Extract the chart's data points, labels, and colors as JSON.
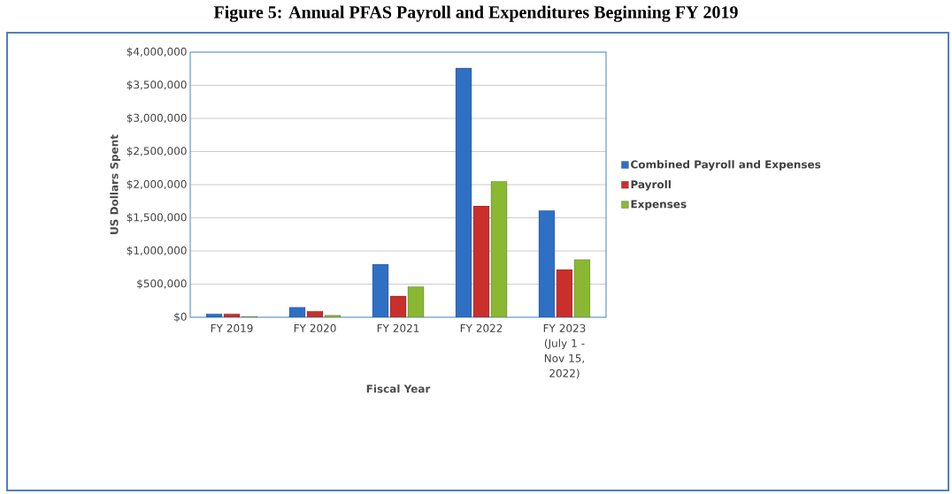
{
  "chart_data": {
    "type": "bar",
    "title": "Figure 5: Annual PFAS Payroll and Expenditures Beginning FY 2019",
    "categories": [
      "FY 2019",
      "FY 2020",
      "FY 2021",
      "FY 2022",
      "FY 2023 (July 1 - Nov 15, 2022)"
    ],
    "series": [
      {
        "name": "Combined Payroll and Expenses",
        "color": "#2f6fc4",
        "values": [
          50000,
          150000,
          800000,
          3760000,
          1610000
        ]
      },
      {
        "name": "Payroll",
        "color": "#c9302c",
        "values": [
          50000,
          90000,
          320000,
          1680000,
          720000
        ]
      },
      {
        "name": "Expenses",
        "color": "#8ab833",
        "values": [
          10000,
          30000,
          460000,
          2050000,
          870000
        ]
      }
    ],
    "xlabel": "Fiscal Year",
    "ylabel": "US Dollars Spent",
    "ylim": [
      0,
      4000000
    ],
    "yticks": [
      {
        "value": 0,
        "label": "$0"
      },
      {
        "value": 500000,
        "label": "$500,000"
      },
      {
        "value": 1000000,
        "label": "$1,000,000"
      },
      {
        "value": 1500000,
        "label": "$1,500,000"
      },
      {
        "value": 2000000,
        "label": "$2,000,000"
      },
      {
        "value": 2500000,
        "label": "$2,500,000"
      },
      {
        "value": 3000000,
        "label": "$3,000,000"
      },
      {
        "value": 3500000,
        "label": "$3,500,000"
      },
      {
        "value": 4000000,
        "label": "$4,000,000"
      }
    ],
    "grid": "y",
    "legend": "right"
  }
}
